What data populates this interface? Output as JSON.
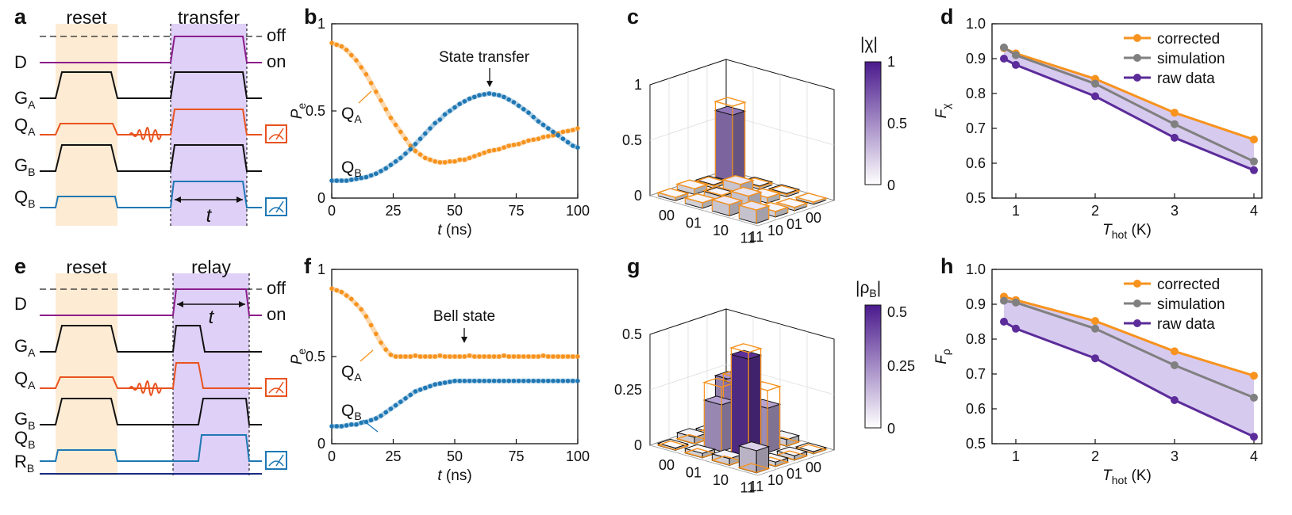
{
  "panels": {
    "a": {
      "letter": "a",
      "reset_label": "reset",
      "window_label": "transfer",
      "off_label": "off",
      "on_label": "on",
      "lines": [
        "D",
        "G",
        "Q",
        "G",
        "Q"
      ],
      "subs": [
        "",
        "A",
        "A",
        "B",
        "B"
      ],
      "t_label": "t"
    },
    "e": {
      "letter": "e",
      "reset_label": "reset",
      "window_label": "relay",
      "off_label": "off",
      "on_label": "on",
      "lines": [
        "D",
        "G",
        "Q",
        "G",
        "Q",
        "R"
      ],
      "subs": [
        "",
        "A",
        "A",
        "B",
        "B",
        "B"
      ],
      "t_label": "t"
    },
    "b": {
      "letter": "b",
      "annotation": "State transfer",
      "qa": "Q",
      "qa_sub": "A",
      "qb": "Q",
      "qb_sub": "B"
    },
    "f": {
      "letter": "f",
      "annotation": "Bell state",
      "qa": "Q",
      "qa_sub": "A",
      "qb": "Q",
      "qb_sub": "B"
    },
    "c": {
      "letter": "c",
      "cbar_label": "|χ|",
      "ticks_z": [
        "0",
        "0.5",
        "1"
      ],
      "cbar_ticks": [
        "0",
        "0.5",
        "1"
      ],
      "basis": [
        "00",
        "01",
        "10",
        "11"
      ]
    },
    "g": {
      "letter": "g",
      "cbar_label": "|ρ",
      "cbar_sub": "B",
      "ticks_z": [
        "0",
        "0.25",
        "0.5"
      ],
      "cbar_ticks": [
        "0",
        "0.25",
        "0.5"
      ],
      "basis": [
        "00",
        "01",
        "10",
        "11"
      ]
    },
    "d": {
      "letter": "d"
    },
    "h": {
      "letter": "h"
    }
  },
  "colors": {
    "orange": "#f7931e",
    "blue": "#1f78b4",
    "purple": "#5b2c9a",
    "gray": "#808080",
    "reset_bg": "#fdebd3",
    "window_bg": "#dfd0f7",
    "pulse_orange": "#e8531f",
    "dark_purple": "#8b1d8b",
    "navy": "#1b2a80"
  },
  "chart_data": [
    {
      "id": "b",
      "type": "line",
      "xlabel": "t (ns)",
      "ylabel": "P_e",
      "xlim": [
        0,
        100
      ],
      "ylim": [
        0,
        1
      ],
      "xticks": [
        0,
        25,
        50,
        75,
        100
      ],
      "yticks": [
        0,
        0.5,
        1
      ],
      "series": [
        {
          "name": "QA",
          "x": [
            0,
            2,
            4,
            6,
            8,
            10,
            12,
            14,
            16,
            18,
            20,
            22,
            24,
            26,
            28,
            30,
            32,
            34,
            36,
            38,
            40,
            42,
            44,
            46,
            48,
            50,
            52,
            54,
            56,
            58,
            60,
            62,
            64,
            66,
            68,
            70,
            72,
            74,
            76,
            78,
            80,
            82,
            84,
            86,
            88,
            90,
            92,
            94,
            96,
            98,
            100
          ],
          "y": [
            0.89,
            0.88,
            0.87,
            0.85,
            0.82,
            0.79,
            0.75,
            0.71,
            0.66,
            0.61,
            0.56,
            0.51,
            0.46,
            0.42,
            0.38,
            0.34,
            0.3,
            0.27,
            0.25,
            0.23,
            0.22,
            0.21,
            0.205,
            0.205,
            0.21,
            0.21,
            0.22,
            0.22,
            0.23,
            0.24,
            0.25,
            0.26,
            0.27,
            0.275,
            0.28,
            0.29,
            0.3,
            0.305,
            0.31,
            0.32,
            0.33,
            0.335,
            0.34,
            0.35,
            0.355,
            0.36,
            0.37,
            0.38,
            0.385,
            0.39,
            0.4
          ]
        },
        {
          "name": "QB",
          "x": [
            0,
            2,
            4,
            6,
            8,
            10,
            12,
            14,
            16,
            18,
            20,
            22,
            24,
            26,
            28,
            30,
            32,
            34,
            36,
            38,
            40,
            42,
            44,
            46,
            48,
            50,
            52,
            54,
            56,
            58,
            60,
            62,
            64,
            66,
            68,
            70,
            72,
            74,
            76,
            78,
            80,
            82,
            84,
            86,
            88,
            90,
            92,
            94,
            96,
            98,
            100
          ],
          "y": [
            0.1,
            0.1,
            0.1,
            0.1,
            0.105,
            0.11,
            0.115,
            0.12,
            0.13,
            0.14,
            0.155,
            0.17,
            0.19,
            0.21,
            0.23,
            0.255,
            0.28,
            0.31,
            0.34,
            0.37,
            0.4,
            0.43,
            0.45,
            0.48,
            0.5,
            0.52,
            0.54,
            0.555,
            0.57,
            0.58,
            0.59,
            0.595,
            0.6,
            0.595,
            0.59,
            0.58,
            0.565,
            0.55,
            0.53,
            0.51,
            0.49,
            0.465,
            0.44,
            0.42,
            0.4,
            0.38,
            0.36,
            0.34,
            0.32,
            0.3,
            0.29
          ]
        }
      ]
    },
    {
      "id": "f",
      "type": "line",
      "xlabel": "t (ns)",
      "ylabel": "P_e",
      "xlim": [
        0,
        100
      ],
      "ylim": [
        0,
        1
      ],
      "xticks": [
        0,
        25,
        50,
        75,
        100
      ],
      "yticks": [
        0,
        0.5,
        1
      ],
      "series": [
        {
          "name": "QA",
          "x": [
            0,
            2,
            4,
            6,
            8,
            10,
            12,
            14,
            16,
            18,
            20,
            22,
            24,
            26,
            28,
            30,
            32,
            34,
            36,
            38,
            40,
            42,
            44,
            46,
            48,
            50,
            52,
            54,
            56,
            58,
            60,
            62,
            64,
            66,
            68,
            70,
            72,
            74,
            76,
            78,
            80,
            82,
            84,
            86,
            88,
            90,
            92,
            94,
            96,
            98,
            100
          ],
          "y": [
            0.89,
            0.88,
            0.87,
            0.85,
            0.83,
            0.8,
            0.77,
            0.73,
            0.68,
            0.63,
            0.58,
            0.54,
            0.51,
            0.5,
            0.5,
            0.5,
            0.5,
            0.505,
            0.5,
            0.5,
            0.5,
            0.5,
            0.505,
            0.5,
            0.5,
            0.5,
            0.5,
            0.5,
            0.505,
            0.5,
            0.5,
            0.5,
            0.5,
            0.5,
            0.5,
            0.505,
            0.5,
            0.5,
            0.5,
            0.5,
            0.5,
            0.5,
            0.5,
            0.505,
            0.5,
            0.5,
            0.5,
            0.5,
            0.5,
            0.5,
            0.5
          ]
        },
        {
          "name": "QB",
          "x": [
            0,
            2,
            4,
            6,
            8,
            10,
            12,
            14,
            16,
            18,
            20,
            22,
            24,
            26,
            28,
            30,
            32,
            34,
            36,
            38,
            40,
            42,
            44,
            46,
            48,
            50,
            52,
            54,
            56,
            58,
            60,
            62,
            64,
            66,
            68,
            70,
            72,
            74,
            76,
            78,
            80,
            82,
            84,
            86,
            88,
            90,
            92,
            94,
            96,
            98,
            100
          ],
          "y": [
            0.1,
            0.1,
            0.1,
            0.105,
            0.11,
            0.11,
            0.12,
            0.125,
            0.135,
            0.145,
            0.16,
            0.18,
            0.2,
            0.22,
            0.24,
            0.26,
            0.28,
            0.3,
            0.31,
            0.32,
            0.33,
            0.34,
            0.345,
            0.35,
            0.355,
            0.36,
            0.36,
            0.36,
            0.36,
            0.36,
            0.36,
            0.36,
            0.36,
            0.36,
            0.36,
            0.36,
            0.36,
            0.36,
            0.36,
            0.36,
            0.36,
            0.36,
            0.36,
            0.36,
            0.36,
            0.36,
            0.36,
            0.36,
            0.36,
            0.36,
            0.36
          ]
        }
      ]
    },
    {
      "id": "d",
      "type": "line",
      "xlabel": "T_hot (K)",
      "ylabel": "F_χ",
      "xlim": [
        0.7,
        4.1
      ],
      "ylim": [
        0.5,
        1.0
      ],
      "xticks": [
        1,
        2,
        3,
        4
      ],
      "yticks": [
        0.5,
        0.6,
        0.7,
        0.8,
        0.9,
        1.0
      ],
      "legend": "top-right",
      "series": [
        {
          "name": "corrected",
          "color": "#f7931e",
          "x": [
            0.85,
            1,
            2,
            3,
            4
          ],
          "y": [
            0.93,
            0.915,
            0.842,
            0.745,
            0.668
          ]
        },
        {
          "name": "simulation",
          "color": "#808080",
          "x": [
            0.85,
            1,
            2,
            3,
            4
          ],
          "y": [
            0.932,
            0.91,
            0.828,
            0.712,
            0.605
          ]
        },
        {
          "name": "raw data",
          "color": "#5b2c9a",
          "x": [
            0.85,
            1,
            2,
            3,
            4
          ],
          "y": [
            0.9,
            0.882,
            0.792,
            0.673,
            0.58
          ]
        }
      ]
    },
    {
      "id": "h",
      "type": "line",
      "xlabel": "T_hot (K)",
      "ylabel": "F_ρ",
      "xlim": [
        0.7,
        4.1
      ],
      "ylim": [
        0.5,
        1.0
      ],
      "xticks": [
        1,
        2,
        3,
        4
      ],
      "yticks": [
        0.5,
        0.6,
        0.7,
        0.8,
        0.9,
        1.0
      ],
      "legend": "top-right",
      "series": [
        {
          "name": "corrected",
          "color": "#f7931e",
          "x": [
            0.85,
            1,
            2,
            3,
            4
          ],
          "y": [
            0.922,
            0.912,
            0.852,
            0.765,
            0.695
          ]
        },
        {
          "name": "simulation",
          "color": "#808080",
          "x": [
            0.85,
            1,
            2,
            3,
            4
          ],
          "y": [
            0.91,
            0.905,
            0.83,
            0.725,
            0.632
          ]
        },
        {
          "name": "raw data",
          "color": "#5b2c9a",
          "x": [
            0.85,
            1,
            2,
            3,
            4
          ],
          "y": [
            0.85,
            0.83,
            0.745,
            0.625,
            0.52
          ]
        }
      ]
    },
    {
      "id": "c",
      "type": "bar",
      "zlim": [
        0,
        1
      ],
      "basis": [
        "00",
        "01",
        "10",
        "11"
      ],
      "bars": [
        {
          "i": 0,
          "j": 0,
          "v": 0.6,
          "ideal": 0.68
        },
        {
          "i": 1,
          "j": 0,
          "v": 0.03,
          "ideal": 0.02
        },
        {
          "i": 2,
          "j": 0,
          "v": 0.03,
          "ideal": 0.02
        },
        {
          "i": 3,
          "j": 0,
          "v": 0.02,
          "ideal": 0.02
        },
        {
          "i": 0,
          "j": 1,
          "v": 0.03,
          "ideal": 0.02
        },
        {
          "i": 1,
          "j": 1,
          "v": 0.1,
          "ideal": 0.1
        },
        {
          "i": 2,
          "j": 1,
          "v": 0.05,
          "ideal": 0.05
        },
        {
          "i": 3,
          "j": 1,
          "v": 0.03,
          "ideal": 0.03
        },
        {
          "i": 0,
          "j": 2,
          "v": 0.05,
          "ideal": 0.05
        },
        {
          "i": 1,
          "j": 2,
          "v": 0.05,
          "ideal": 0.06
        },
        {
          "i": 2,
          "j": 2,
          "v": 0.12,
          "ideal": 0.12
        },
        {
          "i": 3,
          "j": 2,
          "v": 0.05,
          "ideal": 0.05
        },
        {
          "i": 0,
          "j": 3,
          "v": 0.03,
          "ideal": 0.03
        },
        {
          "i": 1,
          "j": 3,
          "v": 0.05,
          "ideal": 0.05
        },
        {
          "i": 2,
          "j": 3,
          "v": 0.1,
          "ideal": 0.1
        },
        {
          "i": 3,
          "j": 3,
          "v": 0.12,
          "ideal": 0.12
        }
      ]
    },
    {
      "id": "g",
      "type": "bar",
      "zlim": [
        0,
        0.5
      ],
      "basis": [
        "00",
        "01",
        "10",
        "11"
      ],
      "bars": [
        {
          "i": 0,
          "j": 0,
          "v": 0.23,
          "ideal": 0.0
        },
        {
          "i": 1,
          "j": 0,
          "v": 0.02,
          "ideal": 0.0
        },
        {
          "i": 2,
          "j": 0,
          "v": 0.03,
          "ideal": 0.0
        },
        {
          "i": 3,
          "j": 0,
          "v": 0.01,
          "ideal": 0.0
        },
        {
          "i": 0,
          "j": 1,
          "v": 0.02,
          "ideal": 0.0
        },
        {
          "i": 1,
          "j": 1,
          "v": 0.27,
          "ideal": 0.3
        },
        {
          "i": 2,
          "j": 1,
          "v": 0.2,
          "ideal": 0.28
        },
        {
          "i": 3,
          "j": 1,
          "v": 0.02,
          "ideal": 0.0
        },
        {
          "i": 0,
          "j": 2,
          "v": 0.03,
          "ideal": 0.0
        },
        {
          "i": 1,
          "j": 2,
          "v": 0.21,
          "ideal": 0.29
        },
        {
          "i": 2,
          "j": 2,
          "v": 0.45,
          "ideal": 0.48
        },
        {
          "i": 3,
          "j": 2,
          "v": 0.02,
          "ideal": 0.0
        },
        {
          "i": 0,
          "j": 3,
          "v": 0.01,
          "ideal": 0.0
        },
        {
          "i": 1,
          "j": 3,
          "v": 0.02,
          "ideal": 0.0
        },
        {
          "i": 2,
          "j": 3,
          "v": 0.03,
          "ideal": 0.0
        },
        {
          "i": 3,
          "j": 3,
          "v": 0.1,
          "ideal": 0.0
        }
      ]
    }
  ]
}
